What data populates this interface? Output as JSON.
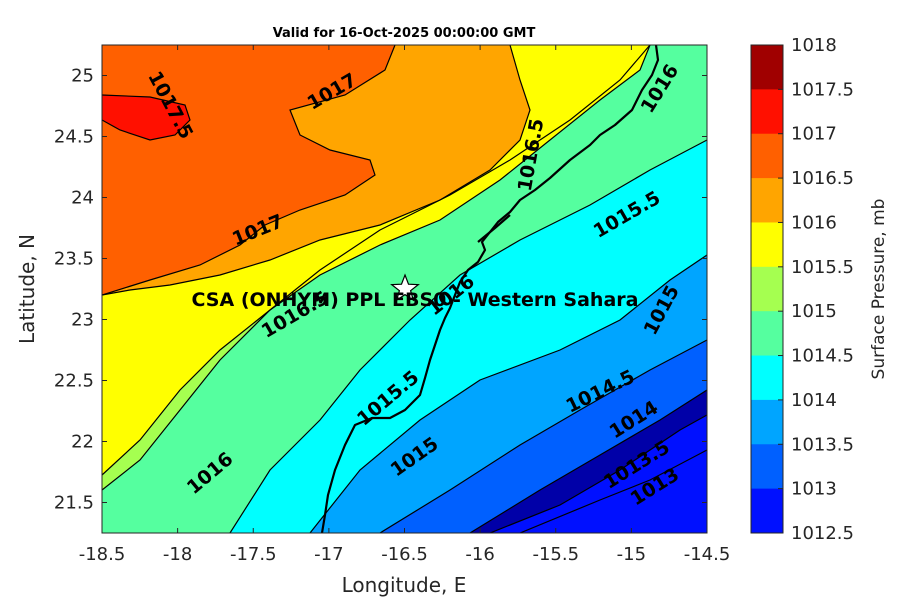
{
  "chart_data": {
    "type": "contour",
    "title": "Valid for 16-Oct-2025 00:00:00 GMT",
    "xlabel": "Longitude, E",
    "ylabel": "Latitude, N",
    "xlim": [
      -18.5,
      -14.5
    ],
    "ylim": [
      21.25,
      25.25
    ],
    "xticks": [
      "-18.5",
      "-18",
      "-17.5",
      "-17",
      "-16.5",
      "-16",
      "-15.5",
      "-15",
      "-14.5"
    ],
    "yticks": [
      "21.5",
      "22",
      "22.5",
      "23",
      "23.5",
      "24",
      "24.5",
      "25"
    ],
    "levels": [
      {
        "value": 1018,
        "color": "#a00000"
      },
      {
        "value": 1017.5,
        "color": "#ff1000"
      },
      {
        "value": 1017,
        "color": "#ff6000"
      },
      {
        "value": 1016.5,
        "color": "#ffa500"
      },
      {
        "value": 1016,
        "color": "#ffff00"
      },
      {
        "value": 1015.5,
        "color": "#a5ff50"
      },
      {
        "value": 1015,
        "color": "#55ff9f"
      },
      {
        "value": 1014.5,
        "color": "#00ffff"
      },
      {
        "value": 1014,
        "color": "#00a5ff"
      },
      {
        "value": 1013.5,
        "color": "#0060ff"
      },
      {
        "value": 1013,
        "color": "#0010ff"
      },
      {
        "value": 1012.5,
        "color": "#0000a8"
      }
    ],
    "colorbar_label": "Surface Pressure, mb",
    "colorbar_ticks": [
      "1018",
      "1017.5",
      "1017",
      "1016.5",
      "1016",
      "1015.5",
      "1015",
      "1014.5",
      "1014",
      "1013.5",
      "1013",
      "1012.5"
    ],
    "contour_labels": [
      "1017.5",
      "1017",
      "1017",
      "1016.5",
      "1016.5",
      "1016",
      "1016",
      "1016",
      "1015.5",
      "1015.5",
      "1015",
      "1015",
      "1014.5",
      "1014",
      "1013.5",
      "1013"
    ],
    "site": {
      "name": "CSA (ONHYM) PPL EBS0 - Western Sahara",
      "lon": -16.5,
      "lat": 23.3
    }
  }
}
